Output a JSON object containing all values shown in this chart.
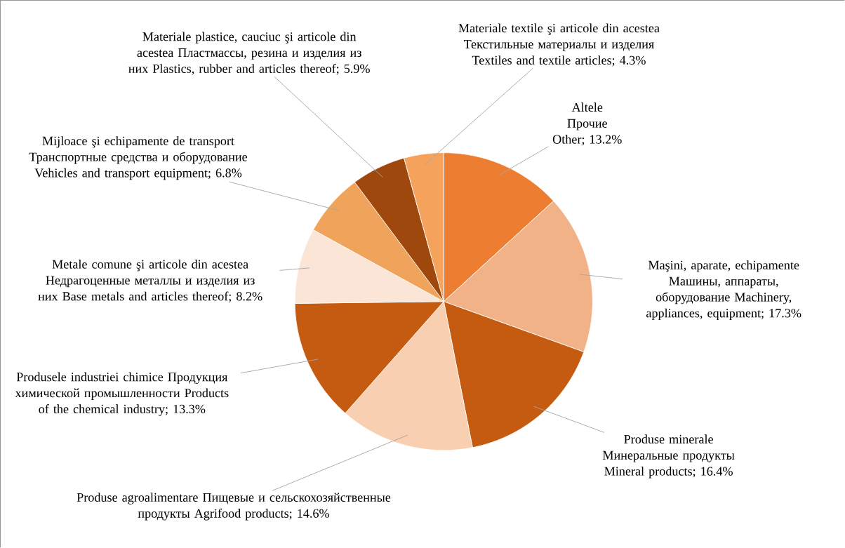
{
  "chart_data": {
    "type": "pie",
    "categories": [
      "Altele Прочие Other",
      "Maşini, aparate, echipamente Машины, аппараты, оборудование Machinery, appliances, equipment",
      "Produse minerale Минеральные продукты Mineral products",
      "Produse agroalimentare Пищевые и сельскохозяйственные продукты Agrifood products",
      "Produsele industriei chimice Продукция химической промышленности Products of the chemical industry",
      "Metale comune şi articole din acestea Недрагоценные металлы и изделия из них Base metals and articles thereof",
      "Mijloace şi echipamente de transport Транспортные средства и оборудование Vehicles and transport equipment",
      "Materiale plastice, cauciuc şi articole din acestea Пластмассы, резина и изделия из них Plastics, rubber and articles thereof",
      "Materiale textile şi articole din acestea Текстильные материалы и изделия Textiles and textile articles"
    ],
    "values": [
      13.2,
      17.3,
      16.4,
      14.6,
      13.3,
      8.2,
      6.8,
      5.9,
      4.3
    ],
    "value_labels": [
      "; 13.2%",
      "; 17.3%",
      "; 16.4%",
      "; 14.6%",
      "; 13.3%",
      "; 8.2%",
      "; 6.8%",
      "; 5.9%",
      "; 4.3%"
    ],
    "colors": [
      "#ed7d31",
      "#f2b287",
      "#c55a11",
      "#f8cfb0",
      "#c55a11",
      "#fbe5d6",
      "#f0a35a",
      "#9e480e",
      "#f5a35c"
    ]
  }
}
